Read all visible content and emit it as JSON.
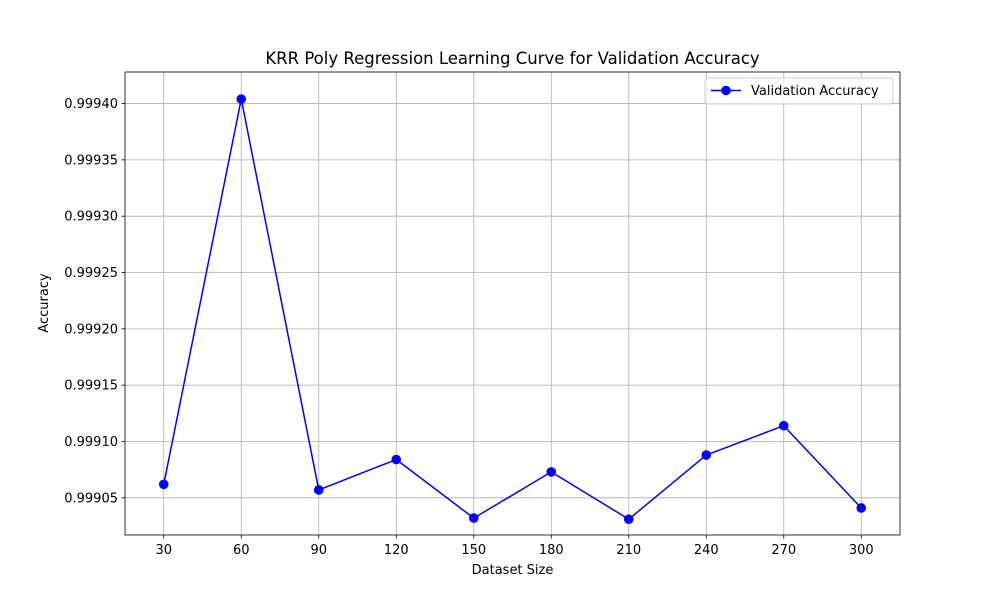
{
  "chart_data": {
    "type": "line",
    "title": "KRR Poly Regression Learning Curve for Validation Accuracy",
    "xlabel": "Dataset Size",
    "ylabel": "Accuracy",
    "x": [
      30,
      60,
      90,
      120,
      150,
      180,
      210,
      240,
      270,
      300
    ],
    "x_ticks": [
      "30",
      "60",
      "90",
      "120",
      "150",
      "180",
      "210",
      "240",
      "270",
      "300"
    ],
    "y_ticks": [
      0.99905,
      0.9991,
      0.99915,
      0.9992,
      0.99925,
      0.9993,
      0.99935,
      0.9994
    ],
    "y_tick_labels": [
      "0.99905",
      "0.99910",
      "0.99915",
      "0.99920",
      "0.99925",
      "0.99930",
      "0.99935",
      "0.99940"
    ],
    "xlim": [
      15,
      315
    ],
    "ylim": [
      0.999017,
      0.999428
    ],
    "grid": true,
    "legend_position": "upper-right",
    "series": [
      {
        "name": "Validation Accuracy",
        "color": "#0000ff",
        "marker": "circle",
        "values": [
          0.999062,
          0.999404,
          0.999057,
          0.999084,
          0.999032,
          0.999073,
          0.999031,
          0.999088,
          0.999114,
          0.999041
        ]
      }
    ]
  }
}
